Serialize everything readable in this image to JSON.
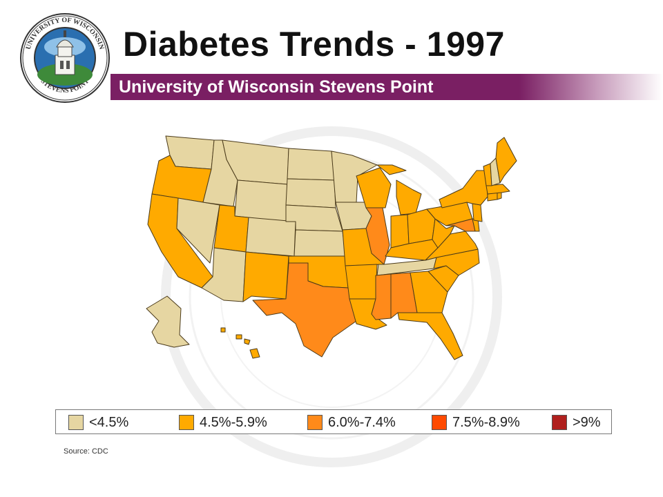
{
  "header": {
    "title": "Diabetes Trends - 1997",
    "subtitle": "University of Wisconsin Stevens Point",
    "banner_color": "#7a1f63",
    "logo": {
      "text": "UNIVERSITY OF WISCONSIN · STEVENS POINT",
      "description_icon": "university-seal-icon"
    }
  },
  "legend": {
    "items": [
      {
        "label": "<4.5%",
        "color": "#e6d6a2"
      },
      {
        "label": "4.5%-5.9%",
        "color": "#ffaa00"
      },
      {
        "label": "6.0%-7.4%",
        "color": "#ff8a1a"
      },
      {
        "label": "7.5%-8.9%",
        "color": "#ff4a00"
      },
      {
        "label": ">9%",
        "color": "#b0201e"
      }
    ]
  },
  "map": {
    "year": "1997",
    "category_colors": [
      "#e6d6a2",
      "#ffaa00",
      "#ff8a1a",
      "#ff4a00",
      "#b0201e"
    ],
    "border_color": "#4a3a1a",
    "states": {
      "WA": 0,
      "OR": 1,
      "CA": 1,
      "NV": 0,
      "ID": 0,
      "MT": 0,
      "WY": 0,
      "UT": 1,
      "AZ": 0,
      "CO": 0,
      "NM": 1,
      "ND": 0,
      "SD": 0,
      "NE": 0,
      "KS": 0,
      "OK": 1,
      "TX": 2,
      "MN": 0,
      "IA": 0,
      "MO": 1,
      "AR": 1,
      "LA": 1,
      "WI": 1,
      "IL": 2,
      "MI": 1,
      "IN": 1,
      "OH": 1,
      "KY": 1,
      "TN": 0,
      "MS": 2,
      "AL": 2,
      "GA": 1,
      "FL": 1,
      "SC": 1,
      "NC": 1,
      "VA": 1,
      "WV": 1,
      "MD": 2,
      "DE": 1,
      "PA": 1,
      "NJ": 1,
      "NY": 1,
      "CT": 1,
      "RI": 1,
      "MA": 1,
      "VT": 1,
      "NH": 0,
      "ME": 1,
      "AK": 0,
      "HI": 1
    }
  },
  "source": "Source: CDC"
}
